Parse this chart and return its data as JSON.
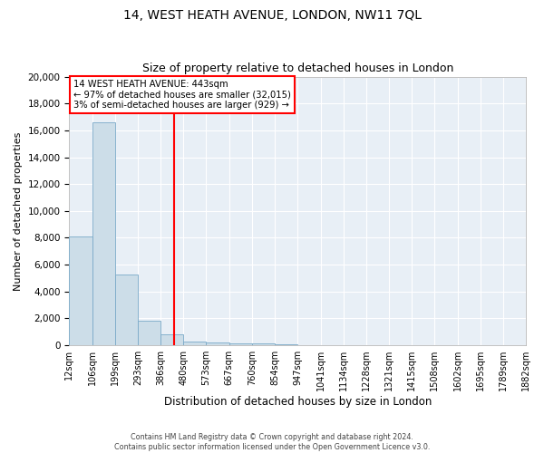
{
  "title": "14, WEST HEATH AVENUE, LONDON, NW11 7QL",
  "subtitle": "Size of property relative to detached houses in London",
  "xlabel": "Distribution of detached houses by size in London",
  "ylabel": "Number of detached properties",
  "bar_color": "#ccdde8",
  "bar_edge_color": "#7aaac8",
  "background_color": "#e8eff6",
  "grid_color": "#ffffff",
  "vline_x": 443,
  "vline_color": "red",
  "annotation_lines": [
    "14 WEST HEATH AVENUE: 443sqm",
    "← 97% of detached houses are smaller (32,015)",
    "3% of semi-detached houses are larger (929) →"
  ],
  "bin_edges": [
    12,
    106,
    199,
    293,
    386,
    480,
    573,
    667,
    760,
    854,
    947,
    1041,
    1134,
    1228,
    1321,
    1415,
    1508,
    1602,
    1695,
    1789,
    1882
  ],
  "bin_counts": [
    8100,
    16600,
    5300,
    1800,
    800,
    280,
    180,
    150,
    120,
    100,
    0,
    0,
    0,
    0,
    0,
    0,
    0,
    0,
    0,
    0
  ],
  "ylim": [
    0,
    20000
  ],
  "yticks": [
    0,
    2000,
    4000,
    6000,
    8000,
    10000,
    12000,
    14000,
    16000,
    18000,
    20000
  ],
  "footer_lines": [
    "Contains HM Land Registry data © Crown copyright and database right 2024.",
    "Contains public sector information licensed under the Open Government Licence v3.0."
  ],
  "figsize": [
    6.0,
    5.0
  ],
  "dpi": 100
}
